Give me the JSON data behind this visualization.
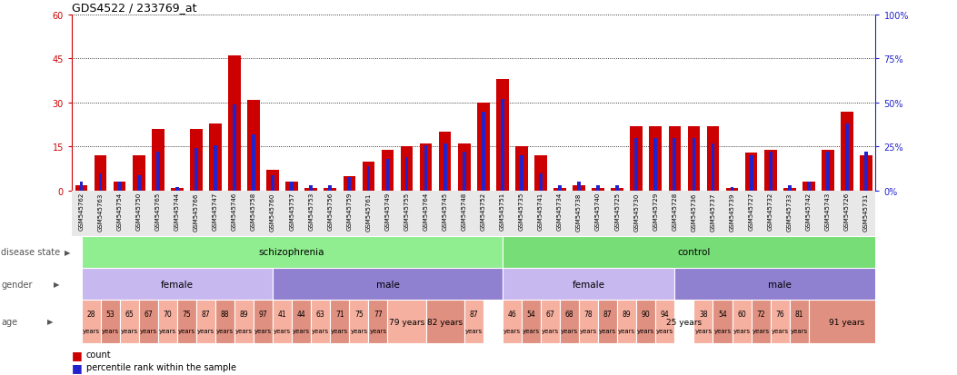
{
  "title": "GDS4522 / 233769_at",
  "samples": [
    "GSM545762",
    "GSM545763",
    "GSM545754",
    "GSM545750",
    "GSM545765",
    "GSM545744",
    "GSM545766",
    "GSM545747",
    "GSM545746",
    "GSM545758",
    "GSM545760",
    "GSM545757",
    "GSM545753",
    "GSM545756",
    "GSM545759",
    "GSM545761",
    "GSM545749",
    "GSM545755",
    "GSM545764",
    "GSM545745",
    "GSM545748",
    "GSM545752",
    "GSM545751",
    "GSM545735",
    "GSM545741",
    "GSM545734",
    "GSM545738",
    "GSM545740",
    "GSM545725",
    "GSM545730",
    "GSM545729",
    "GSM545728",
    "GSM545736",
    "GSM545737",
    "GSM545739",
    "GSM545727",
    "GSM545732",
    "GSM545733",
    "GSM545742",
    "GSM545743",
    "GSM545726",
    "GSM545731"
  ],
  "count": [
    2,
    12,
    3,
    12,
    21,
    1,
    21,
    23,
    46,
    31,
    7,
    3,
    1,
    1,
    5,
    10,
    14,
    15,
    16,
    20,
    16,
    30,
    38,
    15,
    12,
    1,
    2,
    1,
    1,
    22,
    22,
    22,
    22,
    22,
    1,
    13,
    14,
    1,
    3,
    14,
    27,
    12
  ],
  "percentile": [
    5,
    10,
    5,
    9,
    22,
    2,
    24,
    26,
    49,
    32,
    9,
    5,
    3,
    3,
    8,
    14,
    18,
    19,
    26,
    27,
    22,
    45,
    52,
    20,
    10,
    3,
    5,
    3,
    3,
    30,
    30,
    30,
    30,
    27,
    2,
    20,
    22,
    3,
    5,
    22,
    38,
    22
  ],
  "disease_state_groups": [
    {
      "label": "schizophrenia",
      "start": 0,
      "end": 22,
      "color": "#90ee90"
    },
    {
      "label": "control",
      "start": 22,
      "end": 42,
      "color": "#77dd77"
    }
  ],
  "gender_groups": [
    {
      "label": "female",
      "start": 0,
      "end": 10,
      "color": "#c8b8f0"
    },
    {
      "label": "male",
      "start": 10,
      "end": 22,
      "color": "#9080d0"
    },
    {
      "label": "female",
      "start": 22,
      "end": 31,
      "color": "#c8b8f0"
    },
    {
      "label": "male",
      "start": 31,
      "end": 42,
      "color": "#9080d0"
    }
  ],
  "age_cells": [
    {
      "text": "28",
      "sub": "years",
      "start": 0,
      "end": 1,
      "color": "#f5b0a0"
    },
    {
      "text": "53",
      "sub": "years",
      "start": 1,
      "end": 2,
      "color": "#e09080"
    },
    {
      "text": "65",
      "sub": "years",
      "start": 2,
      "end": 3,
      "color": "#f5b0a0"
    },
    {
      "text": "67",
      "sub": "years",
      "start": 3,
      "end": 4,
      "color": "#e09080"
    },
    {
      "text": "70",
      "sub": "years",
      "start": 4,
      "end": 5,
      "color": "#f5b0a0"
    },
    {
      "text": "75",
      "sub": "years",
      "start": 5,
      "end": 6,
      "color": "#e09080"
    },
    {
      "text": "87",
      "sub": "years",
      "start": 6,
      "end": 7,
      "color": "#f5b0a0"
    },
    {
      "text": "88",
      "sub": "years",
      "start": 7,
      "end": 8,
      "color": "#e09080"
    },
    {
      "text": "89",
      "sub": "years",
      "start": 8,
      "end": 9,
      "color": "#f5b0a0"
    },
    {
      "text": "97",
      "sub": "years",
      "start": 9,
      "end": 10,
      "color": "#e09080"
    },
    {
      "text": "41",
      "sub": "years",
      "start": 10,
      "end": 11,
      "color": "#f5b0a0"
    },
    {
      "text": "44",
      "sub": "years",
      "start": 11,
      "end": 12,
      "color": "#e09080"
    },
    {
      "text": "63",
      "sub": "years",
      "start": 12,
      "end": 13,
      "color": "#f5b0a0"
    },
    {
      "text": "71",
      "sub": "years",
      "start": 13,
      "end": 14,
      "color": "#e09080"
    },
    {
      "text": "75",
      "sub": "years",
      "start": 14,
      "end": 15,
      "color": "#f5b0a0"
    },
    {
      "text": "77",
      "sub": "years",
      "start": 15,
      "end": 16,
      "color": "#e09080"
    },
    {
      "text": "79 years",
      "sub": "",
      "start": 16,
      "end": 18,
      "color": "#f5b0a0"
    },
    {
      "text": "82 years",
      "sub": "",
      "start": 18,
      "end": 20,
      "color": "#e09080"
    },
    {
      "text": "87",
      "sub": "years",
      "start": 20,
      "end": 21,
      "color": "#f5b0a0"
    },
    {
      "text": "46",
      "sub": "years",
      "start": 22,
      "end": 23,
      "color": "#f5b0a0"
    },
    {
      "text": "54",
      "sub": "years",
      "start": 23,
      "end": 24,
      "color": "#e09080"
    },
    {
      "text": "67",
      "sub": "years",
      "start": 24,
      "end": 25,
      "color": "#f5b0a0"
    },
    {
      "text": "68",
      "sub": "years",
      "start": 25,
      "end": 26,
      "color": "#e09080"
    },
    {
      "text": "78",
      "sub": "years",
      "start": 26,
      "end": 27,
      "color": "#f5b0a0"
    },
    {
      "text": "87",
      "sub": "years",
      "start": 27,
      "end": 28,
      "color": "#e09080"
    },
    {
      "text": "89",
      "sub": "years",
      "start": 28,
      "end": 29,
      "color": "#f5b0a0"
    },
    {
      "text": "90",
      "sub": "years",
      "start": 29,
      "end": 30,
      "color": "#e09080"
    },
    {
      "text": "94",
      "sub": "years",
      "start": 30,
      "end": 31,
      "color": "#f5b0a0"
    },
    {
      "text": "25 years",
      "sub": "",
      "start": 31,
      "end": 32,
      "color": "#ffffff"
    },
    {
      "text": "38",
      "sub": "years",
      "start": 32,
      "end": 33,
      "color": "#f5b0a0"
    },
    {
      "text": "54",
      "sub": "years",
      "start": 33,
      "end": 34,
      "color": "#e09080"
    },
    {
      "text": "60",
      "sub": "years",
      "start": 34,
      "end": 35,
      "color": "#f5b0a0"
    },
    {
      "text": "72",
      "sub": "years",
      "start": 35,
      "end": 36,
      "color": "#e09080"
    },
    {
      "text": "76",
      "sub": "years",
      "start": 36,
      "end": 37,
      "color": "#f5b0a0"
    },
    {
      "text": "81",
      "sub": "years",
      "start": 37,
      "end": 38,
      "color": "#e09080"
    },
    {
      "text": "91 years",
      "sub": "",
      "start": 38,
      "end": 42,
      "color": "#e09080"
    }
  ],
  "ylim_left": [
    0,
    60
  ],
  "ylim_right": [
    0,
    100
  ],
  "yticks_left": [
    0,
    15,
    30,
    45,
    60
  ],
  "yticks_right": [
    0,
    25,
    50,
    75,
    100
  ],
  "bar_color_red": "#cc0000",
  "bar_color_blue": "#2222cc",
  "left_axis_color": "#cc0000",
  "right_axis_color": "#2222cc",
  "chart_bg": "#ffffff",
  "row_label_color": "#555555",
  "title_color": "#000000"
}
